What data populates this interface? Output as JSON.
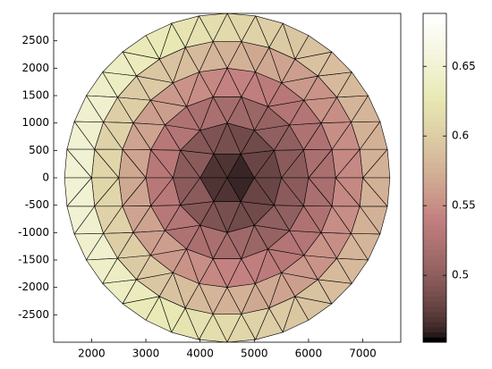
{
  "chart_data": {
    "type": "trimesh",
    "colormap": "pink",
    "center": [
      4500,
      0
    ],
    "radius": 3000,
    "xlim": [
      1300,
      7700
    ],
    "ylim": [
      -3000,
      3000
    ],
    "xticks": [
      2000,
      3000,
      4000,
      5000,
      6000,
      7000
    ],
    "yticks": [
      -2500,
      -2000,
      -1500,
      -1000,
      -500,
      0,
      500,
      1000,
      1500,
      2000,
      2500
    ],
    "clim": [
      0.452,
      0.688
    ],
    "cticks": [
      0.5,
      0.55,
      0.6,
      0.65
    ],
    "rings": [
      {
        "values": [
          0.46,
          0.47,
          0.47,
          0.47,
          0.47,
          0.46
        ]
      },
      {
        "values": [
          0.478,
          0.479,
          0.482,
          0.485,
          0.488,
          0.491,
          0.494,
          0.497,
          0.498,
          0.498,
          0.497,
          0.494,
          0.491,
          0.488,
          0.485,
          0.482,
          0.479,
          0.478
        ]
      },
      {
        "values": [
          0.498,
          0.499,
          0.5,
          0.502,
          0.505,
          0.508,
          0.511,
          0.515,
          0.519,
          0.522,
          0.525,
          0.528,
          0.53,
          0.531,
          0.532,
          0.532,
          0.531,
          0.53,
          0.528,
          0.525,
          0.522,
          0.519,
          0.515,
          0.511,
          0.508,
          0.505,
          0.502,
          0.5,
          0.499,
          0.498
        ]
      },
      {
        "values": [
          0.521,
          0.522,
          0.523,
          0.524,
          0.526,
          0.528,
          0.531,
          0.534,
          0.537,
          0.541,
          0.544,
          0.547,
          0.551,
          0.554,
          0.557,
          0.56,
          0.562,
          0.564,
          0.565,
          0.566,
          0.567,
          0.567,
          0.566,
          0.565,
          0.564,
          0.562,
          0.56,
          0.557,
          0.554,
          0.551,
          0.547,
          0.544,
          0.541,
          0.537,
          0.534,
          0.531,
          0.528,
          0.526,
          0.524,
          0.523,
          0.522,
          0.521
        ]
      },
      {
        "values": [
          0.547,
          0.547,
          0.548,
          0.549,
          0.551,
          0.553,
          0.555,
          0.558,
          0.561,
          0.564,
          0.567,
          0.57,
          0.574,
          0.577,
          0.58,
          0.584,
          0.587,
          0.59,
          0.593,
          0.596,
          0.599,
          0.601,
          0.603,
          0.605,
          0.606,
          0.607,
          0.607,
          0.607,
          0.607,
          0.606,
          0.605,
          0.603,
          0.601,
          0.599,
          0.596,
          0.593,
          0.59,
          0.587,
          0.584,
          0.58,
          0.577,
          0.574,
          0.57,
          0.567,
          0.564,
          0.561,
          0.558,
          0.555,
          0.553,
          0.551,
          0.549,
          0.548,
          0.547,
          0.547
        ]
      },
      {
        "values": [
          0.575,
          0.575,
          0.576,
          0.577,
          0.578,
          0.58,
          0.582,
          0.584,
          0.586,
          0.589,
          0.592,
          0.595,
          0.598,
          0.602,
          0.605,
          0.608,
          0.612,
          0.616,
          0.619,
          0.622,
          0.626,
          0.629,
          0.632,
          0.635,
          0.638,
          0.64,
          0.642,
          0.644,
          0.646,
          0.647,
          0.648,
          0.649,
          0.649,
          0.649,
          0.649,
          0.648,
          0.647,
          0.646,
          0.644,
          0.642,
          0.64,
          0.638,
          0.635,
          0.632,
          0.629,
          0.626,
          0.622,
          0.619,
          0.616,
          0.612,
          0.608,
          0.605,
          0.602,
          0.598,
          0.595,
          0.592,
          0.589,
          0.586,
          0.584,
          0.582,
          0.58,
          0.578,
          0.577,
          0.576,
          0.575,
          0.575
        ]
      }
    ]
  }
}
